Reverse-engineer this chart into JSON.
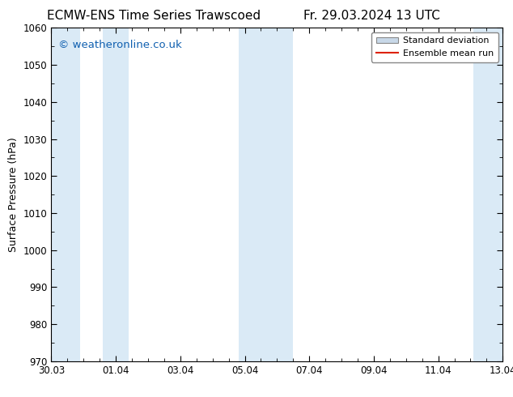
{
  "title_left": "ECMW-ENS Time Series Trawscoed",
  "title_right": "Fr. 29.03.2024 13 UTC",
  "ylabel": "Surface Pressure (hPa)",
  "ylim": [
    970,
    1060
  ],
  "yticks": [
    970,
    980,
    990,
    1000,
    1010,
    1020,
    1030,
    1040,
    1050,
    1060
  ],
  "xlim": [
    0,
    14
  ],
  "xtick_labels": [
    "30.03",
    "01.04",
    "03.04",
    "05.04",
    "07.04",
    "09.04",
    "11.04",
    "13.04"
  ],
  "xtick_positions": [
    0,
    2,
    4,
    6,
    8,
    10,
    12,
    14
  ],
  "shaded_bands": [
    {
      "x_start": -0.1,
      "x_end": 0.9,
      "color": "#daeaf6"
    },
    {
      "x_start": 1.6,
      "x_end": 2.4,
      "color": "#daeaf6"
    },
    {
      "x_start": 5.8,
      "x_end": 7.5,
      "color": "#daeaf6"
    },
    {
      "x_start": 13.1,
      "x_end": 14.1,
      "color": "#daeaf6"
    }
  ],
  "watermark_text": "© weatheronline.co.uk",
  "watermark_color": "#1060b0",
  "watermark_fontsize": 9.5,
  "legend_std_label": "Standard deviation",
  "legend_ens_label": "Ensemble mean run",
  "legend_std_facecolor": "#c8d8e8",
  "legend_std_edgecolor": "#888888",
  "legend_ens_color": "#dd2200",
  "bg_color": "#ffffff",
  "plot_bg_color": "#ffffff",
  "title_fontsize": 11,
  "ylabel_fontsize": 9,
  "tick_fontsize": 8.5,
  "legend_fontsize": 8
}
